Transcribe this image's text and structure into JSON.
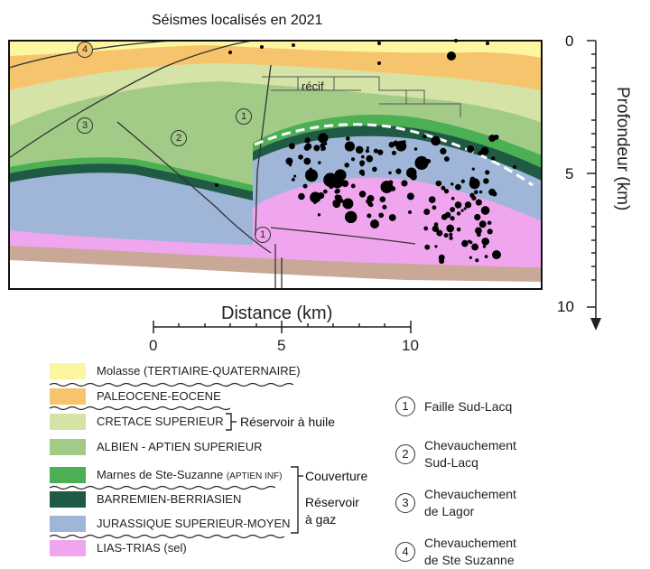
{
  "title": "Séismes localisés en 2021",
  "depth_axis": {
    "title": "Profondeur (km)",
    "ticks": [
      "0",
      "5",
      "10"
    ]
  },
  "distance_axis": {
    "title": "Distance (km)",
    "ticks": [
      "0",
      "5",
      "10"
    ]
  },
  "section": {
    "recif_label": "récif",
    "markers": [
      "4",
      "3",
      "2",
      "1",
      "1"
    ]
  },
  "legend": {
    "units": [
      {
        "label": "Molasse (TERTIAIRE-QUATERNAIRE)",
        "color": "#fdf6a0"
      },
      {
        "label": "PALEOCENE-EOCENE",
        "color": "#f7c46e"
      },
      {
        "label": "CRETACE SUPERIEUR",
        "color": "#d5e3a6"
      },
      {
        "label": "ALBIEN - APTIEN SUPERIEUR",
        "color": "#a3cb88"
      },
      {
        "label": "Marnes de Ste-Suzanne",
        "label_small": "(APTIEN INF)",
        "color": "#4caf54"
      },
      {
        "label": "BARREMIEN-BERRIASIEN",
        "color": "#1f5a45"
      },
      {
        "label": "JURASSIQUE SUPERIEUR-MOYEN",
        "color": "#9fb6d9"
      },
      {
        "label": "LIAS-TRIAS (sel)",
        "color": "#f0a6ee"
      }
    ],
    "groups": {
      "huile": "Réservoir à huile",
      "couverture": "Couverture",
      "gaz_line1": "Réservoir",
      "gaz_line2": "à gaz"
    }
  },
  "faults": [
    {
      "num": "1",
      "line1": "Faille Sud-Lacq",
      "line2": ""
    },
    {
      "num": "2",
      "line1": "Chevauchement",
      "line2": "Sud-Lacq"
    },
    {
      "num": "3",
      "line1": "Chevauchement",
      "line2": "de Lagor"
    },
    {
      "num": "4",
      "line1": "Chevauchement",
      "line2": "de Ste Suzanne"
    }
  ]
}
